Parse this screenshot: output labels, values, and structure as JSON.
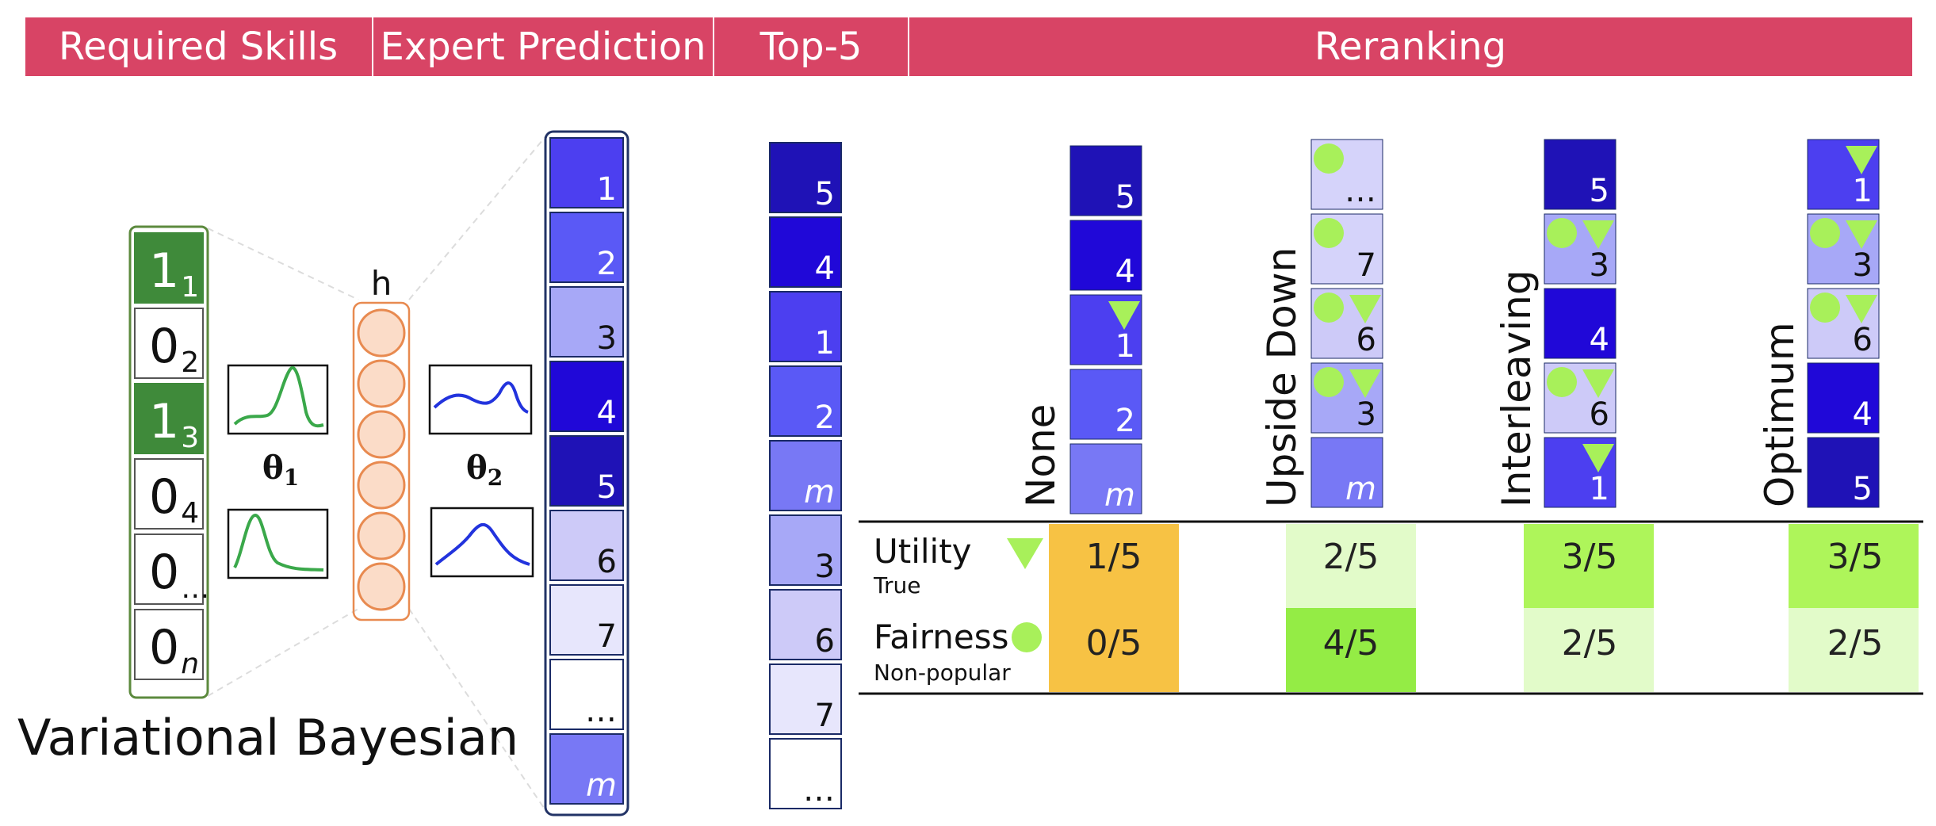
{
  "headers": [
    {
      "label": "Required Skills"
    },
    {
      "label": "Expert Prediction"
    },
    {
      "label": "Top-5"
    },
    {
      "label": "Reranking"
    }
  ],
  "colors": {
    "header": "#d84465",
    "skill_on": "#3f8a3a",
    "neuron_fill": "#fbdcc8",
    "neuron_stroke": "#e88a50",
    "green_marker": "#a8f05a",
    "orange_cell": "#f7c244",
    "green_strong": "#94ec45",
    "green_mid": "#aef55a",
    "green_light": "#e2fbc9"
  },
  "skill_vector": [
    {
      "digit": "1",
      "sub": "1",
      "on": true
    },
    {
      "digit": "0",
      "sub": "2",
      "on": false
    },
    {
      "digit": "1",
      "sub": "3",
      "on": true
    },
    {
      "digit": "0",
      "sub": "4",
      "on": false
    },
    {
      "digit": "0",
      "sub": "…",
      "on": false
    },
    {
      "digit": "0",
      "sub": "n",
      "on": false
    }
  ],
  "model": {
    "hidden_label": "h",
    "theta1": "θ",
    "theta1_sub": "1",
    "theta2": "θ",
    "theta2_sub": "2",
    "caption": "Variational Bayesian"
  },
  "expert_prediction": [
    {
      "label": "1",
      "shade": "#4c3ff0"
    },
    {
      "label": "2",
      "shade": "#5a59f6"
    },
    {
      "label": "3",
      "shade": "#a7a8f7"
    },
    {
      "label": "4",
      "shade": "#2008d8"
    },
    {
      "label": "5",
      "shade": "#1f12b6"
    },
    {
      "label": "6",
      "shade": "#cdcaf8"
    },
    {
      "label": "7",
      "shade": "#e7e6fc"
    },
    {
      "label": "…",
      "shade": "#ffffff"
    },
    {
      "label": "m",
      "shade": "#7878f5"
    }
  ],
  "top5": [
    {
      "label": "5",
      "shade": "#1f12b6"
    },
    {
      "label": "4",
      "shade": "#2008d8"
    },
    {
      "label": "1",
      "shade": "#4c3ff0"
    },
    {
      "label": "2",
      "shade": "#5a59f6"
    },
    {
      "label": "m",
      "shade": "#7878f5"
    },
    {
      "label": "3",
      "shade": "#a7a8f7"
    },
    {
      "label": "6",
      "shade": "#cdcaf8"
    },
    {
      "label": "7",
      "shade": "#e7e6fc"
    },
    {
      "label": "…",
      "shade": "#ffffff"
    }
  ],
  "reranking": {
    "methods": [
      {
        "name": "None",
        "cells": [
          {
            "label": "5",
            "shade": "#1f12b6",
            "circle": false,
            "tri": false
          },
          {
            "label": "4",
            "shade": "#2008d8",
            "circle": false,
            "tri": false
          },
          {
            "label": "1",
            "shade": "#4c3ff0",
            "circle": false,
            "tri": true
          },
          {
            "label": "2",
            "shade": "#5a59f6",
            "circle": false,
            "tri": false
          },
          {
            "label": "m",
            "shade": "#7878f5",
            "circle": false,
            "tri": false
          }
        ],
        "utility": "1/5",
        "fairness": "0/5",
        "utility_color": "#f7c244",
        "fairness_color": "#f7c244"
      },
      {
        "name": "Upside Down",
        "cells": [
          {
            "label": "…",
            "shade": "#d5d3fa",
            "circle": true,
            "tri": false
          },
          {
            "label": "7",
            "shade": "#d5d3fa",
            "circle": true,
            "tri": false
          },
          {
            "label": "6",
            "shade": "#cdcaf8",
            "circle": true,
            "tri": true
          },
          {
            "label": "3",
            "shade": "#a7a8f7",
            "circle": true,
            "tri": true
          },
          {
            "label": "m",
            "shade": "#7878f5",
            "circle": false,
            "tri": false
          }
        ],
        "utility": "2/5",
        "fairness": "4/5",
        "utility_color": "#e2fbc9",
        "fairness_color": "#94ec45"
      },
      {
        "name": "Interleaving",
        "cells": [
          {
            "label": "5",
            "shade": "#1f12b6",
            "circle": false,
            "tri": false
          },
          {
            "label": "3",
            "shade": "#a7a8f7",
            "circle": true,
            "tri": true
          },
          {
            "label": "4",
            "shade": "#2008d8",
            "circle": false,
            "tri": false
          },
          {
            "label": "6",
            "shade": "#cdcaf8",
            "circle": true,
            "tri": true
          },
          {
            "label": "1",
            "shade": "#4c3ff0",
            "circle": false,
            "tri": true
          }
        ],
        "utility": "3/5",
        "fairness": "2/5",
        "utility_color": "#aef55a",
        "fairness_color": "#e2fbc9"
      },
      {
        "name": "Optimum",
        "cells": [
          {
            "label": "1",
            "shade": "#4c3ff0",
            "circle": false,
            "tri": true
          },
          {
            "label": "3",
            "shade": "#a7a8f7",
            "circle": true,
            "tri": true
          },
          {
            "label": "6",
            "shade": "#cdcaf8",
            "circle": true,
            "tri": true
          },
          {
            "label": "4",
            "shade": "#2008d8",
            "circle": false,
            "tri": false
          },
          {
            "label": "5",
            "shade": "#1f12b6",
            "circle": false,
            "tri": false
          }
        ],
        "utility": "3/5",
        "fairness": "2/5",
        "utility_color": "#aef55a",
        "fairness_color": "#e2fbc9"
      }
    ],
    "metrics": {
      "utility_label": "Utility",
      "utility_sub": "True",
      "fairness_label": "Fairness",
      "fairness_sub": "Non-popular"
    }
  }
}
